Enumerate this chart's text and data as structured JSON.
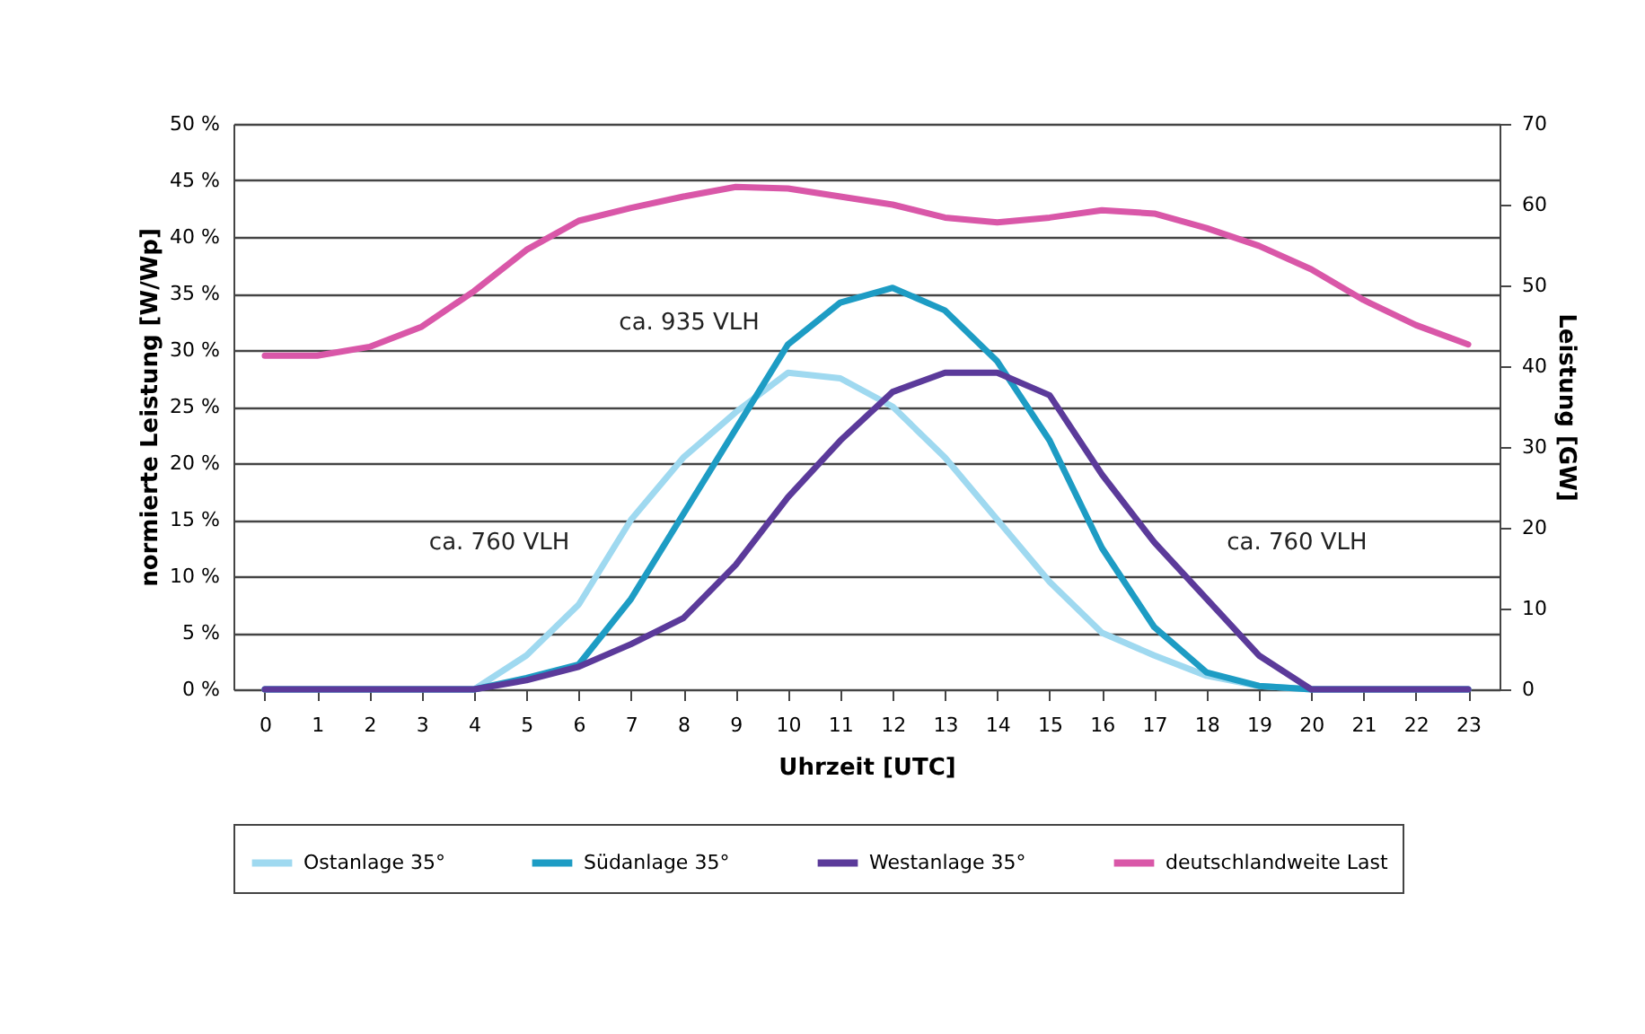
{
  "chart_data": {
    "type": "line",
    "x": [
      0,
      1,
      2,
      3,
      4,
      5,
      6,
      7,
      8,
      9,
      10,
      11,
      12,
      13,
      14,
      15,
      16,
      17,
      18,
      19,
      20,
      21,
      22,
      23
    ],
    "xlim": [
      -0.6,
      23.6
    ],
    "xticks": [
      0,
      1,
      2,
      3,
      4,
      5,
      6,
      7,
      8,
      9,
      10,
      11,
      12,
      13,
      14,
      15,
      16,
      17,
      18,
      19,
      20,
      21,
      22,
      23
    ],
    "xlabel": "Uhrzeit [UTC]",
    "ylabel": "normierte Leistung [W/Wp]",
    "y2label": "Leistung [GW]",
    "ylim": [
      0,
      50
    ],
    "yticks": [
      {
        "value": 0,
        "label": "0 %"
      },
      {
        "value": 5,
        "label": "5 %"
      },
      {
        "value": 10,
        "label": "10 %"
      },
      {
        "value": 15,
        "label": "15 %"
      },
      {
        "value": 20,
        "label": "20 %"
      },
      {
        "value": 25,
        "label": "25 %"
      },
      {
        "value": 30,
        "label": "30 %"
      },
      {
        "value": 35,
        "label": "35 %"
      },
      {
        "value": 40,
        "label": "40 %"
      },
      {
        "value": 45,
        "label": "45 %"
      },
      {
        "value": 50,
        "label": "50 %"
      }
    ],
    "y2lim": [
      0,
      70
    ],
    "y2ticks": [
      0,
      10,
      20,
      30,
      40,
      50,
      60,
      70
    ],
    "grid": "y",
    "legend": "bottom",
    "line_style": "solid",
    "marker": "none",
    "series": [
      {
        "name": "Ostanlage 35°",
        "color": "#9fd9f0",
        "values": [
          0,
          0,
          0,
          0,
          0,
          3,
          7.5,
          15,
          20.5,
          24.5,
          28,
          27.5,
          25,
          20.5,
          15,
          9.5,
          5,
          3,
          1.2,
          0.3,
          0,
          0,
          0,
          0
        ]
      },
      {
        "name": "Südanlage 35°",
        "color": "#1d9cc4",
        "values": [
          0,
          0,
          0,
          0,
          0,
          1,
          2.2,
          8,
          15.5,
          23,
          30.5,
          34.2,
          35.5,
          33.5,
          29,
          22,
          12.5,
          5.5,
          1.5,
          0.3,
          0,
          0,
          0,
          0
        ]
      },
      {
        "name": "Westanlage 35°",
        "color": "#5b3a9a",
        "values": [
          0,
          0,
          0,
          0,
          0,
          0.8,
          2,
          4,
          6.3,
          11,
          17,
          22,
          26.3,
          28,
          28,
          26,
          19,
          13,
          8,
          3,
          0,
          0,
          0,
          0
        ]
      },
      {
        "name": "deutschlandweite Last",
        "color": "#d957a8",
        "axis": "y2",
        "values": [
          41.3,
          41.3,
          42.4,
          44.9,
          49.3,
          54.4,
          58,
          59.6,
          61,
          62.2,
          62,
          61,
          60,
          58.4,
          57.8,
          58.4,
          59.3,
          58.9,
          57.1,
          54.9,
          52,
          48.2,
          45.1,
          42.7
        ]
      }
    ],
    "annotations": [
      "ca. 935 VLH",
      "ca. 760 VLH",
      "ca. 760 VLH"
    ]
  }
}
